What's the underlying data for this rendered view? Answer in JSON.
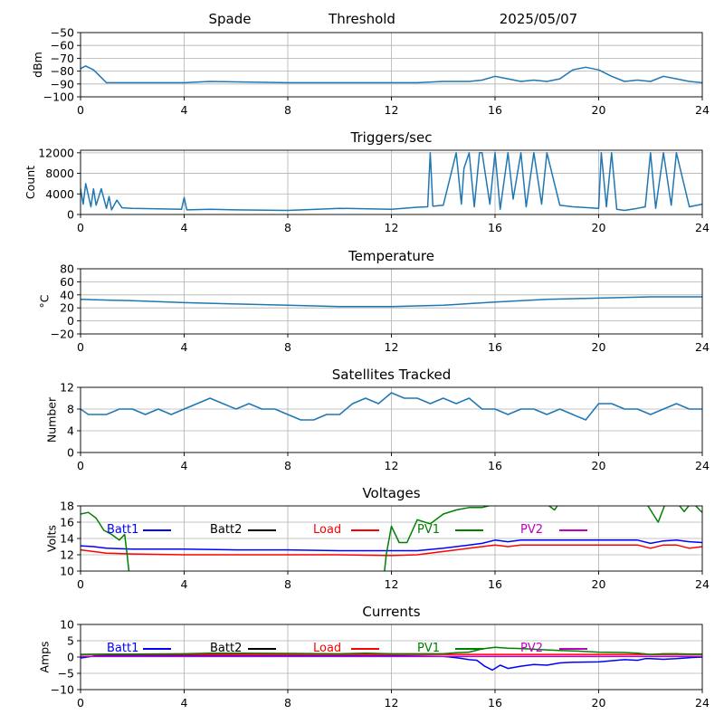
{
  "header": {
    "site": "Spade",
    "mode": "Threshold",
    "date": "2025/05/07"
  },
  "colors": {
    "default": "#1f77b4",
    "Batt1": "#0000ff",
    "Batt2": "#000000",
    "Load": "#ff0000",
    "PV1": "#008000",
    "PV2": "#bf00bf"
  },
  "chart_data": [
    {
      "id": "signal",
      "type": "line",
      "title": "",
      "ylabel": "dBm",
      "xlim": [
        0,
        24
      ],
      "ylim": [
        -100,
        -50
      ],
      "xticks": [
        0,
        4,
        8,
        12,
        16,
        20,
        24
      ],
      "yticks": [
        -100,
        -90,
        -80,
        -70,
        -60,
        -50
      ],
      "grid": true,
      "series": [
        {
          "x": [
            0,
            0.2,
            0.5,
            0.8,
            1.0,
            4,
            5,
            8,
            12,
            13,
            14,
            15,
            15.5,
            16,
            16.5,
            17,
            17.5,
            18,
            18.5,
            19,
            19.5,
            20,
            20.5,
            21,
            21.5,
            22,
            22.5,
            23,
            23.5,
            24
          ],
          "y": [
            -78,
            -76,
            -79,
            -85,
            -89,
            -89,
            -88,
            -89,
            -89,
            -89,
            -88,
            -88,
            -87,
            -84,
            -86,
            -88,
            -87,
            -88,
            -86,
            -79,
            -77,
            -79,
            -84,
            -88,
            -87,
            -88,
            -84,
            -86,
            -88,
            -89
          ]
        }
      ]
    },
    {
      "id": "triggers",
      "type": "line",
      "title": "Triggers/sec",
      "ylabel": "Count",
      "xlim": [
        0,
        24
      ],
      "ylim": [
        0,
        12500
      ],
      "xticks": [
        0,
        4,
        8,
        12,
        16,
        20,
        24
      ],
      "yticks": [
        0,
        4000,
        8000,
        12000
      ],
      "grid": true,
      "series": [
        {
          "x": [
            0,
            0.1,
            0.2,
            0.4,
            0.5,
            0.6,
            0.8,
            1.0,
            1.1,
            1.2,
            1.4,
            1.6,
            2,
            3,
            3.9,
            4.0,
            4.1,
            5,
            6,
            8,
            10,
            12,
            13,
            13.4,
            13.5,
            13.6,
            14,
            14.5,
            14.7,
            14.8,
            15,
            15.2,
            15.4,
            15.5,
            15.8,
            16,
            16.2,
            16.5,
            16.7,
            17,
            17.2,
            17.5,
            17.8,
            18,
            18.5,
            19,
            20,
            20.1,
            20.3,
            20.5,
            20.7,
            21,
            21.5,
            21.8,
            22,
            22.2,
            22.5,
            22.8,
            23,
            23.5,
            24
          ],
          "y": [
            5000,
            2000,
            6000,
            1500,
            5000,
            1800,
            5000,
            1200,
            3500,
            900,
            2800,
            1300,
            1200,
            1100,
            1000,
            3300,
            900,
            1000,
            900,
            800,
            1200,
            1000,
            1400,
            1500,
            12000,
            1600,
            1800,
            12000,
            2000,
            9000,
            12000,
            1500,
            12000,
            12000,
            2000,
            12000,
            1000,
            12000,
            3000,
            12000,
            1500,
            12000,
            2000,
            12000,
            1800,
            1500,
            1200,
            12000,
            1500,
            12000,
            1000,
            800,
            1200,
            1500,
            12000,
            1200,
            12000,
            1800,
            12000,
            1500,
            2000
          ]
        }
      ]
    },
    {
      "id": "temperature",
      "type": "line",
      "title": "Temperature",
      "ylabel": "°C",
      "xlim": [
        0,
        24
      ],
      "ylim": [
        -20,
        80
      ],
      "xticks": [
        0,
        4,
        8,
        12,
        16,
        20,
        24
      ],
      "yticks": [
        -20,
        0,
        20,
        40,
        60,
        80
      ],
      "grid": true,
      "series": [
        {
          "x": [
            0,
            2,
            4,
            6,
            8,
            10,
            12,
            14,
            16,
            18,
            20,
            22,
            24
          ],
          "y": [
            33,
            31,
            28,
            26,
            24,
            22,
            22,
            24,
            29,
            33,
            35,
            37,
            37
          ]
        }
      ]
    },
    {
      "id": "satellites",
      "type": "line",
      "title": "Satellites Tracked",
      "ylabel": "Number",
      "xlim": [
        0,
        24
      ],
      "ylim": [
        0,
        12
      ],
      "xticks": [
        0,
        4,
        8,
        12,
        16,
        20,
        24
      ],
      "yticks": [
        0,
        4,
        8,
        12
      ],
      "grid": true,
      "series": [
        {
          "x": [
            0,
            0.3,
            0.5,
            1,
            1.5,
            2,
            2.5,
            3,
            3.5,
            4,
            4.5,
            5,
            5.5,
            6,
            6.5,
            7,
            7.5,
            8,
            8.5,
            9,
            9.5,
            10,
            10.5,
            11,
            11.5,
            12,
            12.5,
            13,
            13.5,
            14,
            14.5,
            15,
            15.5,
            16,
            16.5,
            17,
            17.5,
            18,
            18.5,
            19,
            19.5,
            20,
            20.5,
            21,
            21.5,
            22,
            22.5,
            23,
            23.5,
            24
          ],
          "y": [
            8,
            7,
            7,
            7,
            8,
            8,
            7,
            8,
            7,
            8,
            9,
            10,
            9,
            8,
            9,
            8,
            8,
            7,
            6,
            6,
            7,
            7,
            9,
            10,
            9,
            11,
            10,
            10,
            9,
            10,
            9,
            10,
            8,
            8,
            7,
            8,
            8,
            7,
            8,
            7,
            6,
            9,
            9,
            8,
            8,
            7,
            8,
            9,
            8,
            8
          ]
        }
      ]
    },
    {
      "id": "voltages",
      "type": "line",
      "title": "Voltages",
      "ylabel": "Volts",
      "xlim": [
        0,
        24
      ],
      "ylim": [
        10,
        18
      ],
      "xticks": [
        0,
        4,
        8,
        12,
        16,
        20,
        24
      ],
      "yticks": [
        10,
        12,
        14,
        16,
        18
      ],
      "grid": true,
      "legend": {
        "placement": "inside-top",
        "entries": [
          "Batt1",
          "Batt2",
          "Load",
          "PV1",
          "PV2"
        ]
      },
      "series": [
        {
          "name": "Batt1",
          "x": [
            0,
            0.5,
            1,
            2,
            4,
            6,
            8,
            10,
            12,
            13,
            14,
            15,
            15.5,
            16,
            16.5,
            17,
            18,
            19,
            20,
            21,
            21.5,
            22,
            22.5,
            23,
            23.5,
            24
          ],
          "y": [
            13.1,
            13.0,
            12.8,
            12.7,
            12.7,
            12.6,
            12.6,
            12.5,
            12.5,
            12.5,
            12.8,
            13.2,
            13.4,
            13.8,
            13.6,
            13.8,
            13.8,
            13.8,
            13.8,
            13.8,
            13.8,
            13.4,
            13.7,
            13.8,
            13.6,
            13.5
          ]
        },
        {
          "name": "Batt2",
          "x": [],
          "y": []
        },
        {
          "name": "Load",
          "x": [
            0,
            0.5,
            1,
            2,
            4,
            6,
            8,
            10,
            12,
            13,
            14,
            15,
            15.5,
            16,
            16.5,
            17,
            18,
            19,
            20,
            21,
            21.5,
            22,
            22.5,
            23,
            23.5,
            24
          ],
          "y": [
            12.6,
            12.4,
            12.2,
            12.1,
            12.0,
            12.0,
            12.0,
            12.0,
            11.9,
            12.0,
            12.4,
            12.8,
            13.0,
            13.2,
            13.0,
            13.2,
            13.2,
            13.2,
            13.2,
            13.2,
            13.2,
            12.8,
            13.2,
            13.2,
            12.8,
            13.0
          ]
        },
        {
          "name": "PV1",
          "x": [
            0,
            0.3,
            0.6,
            0.9,
            1.2,
            1.5,
            1.7,
            1.8,
            1.9,
            11.7,
            11.8,
            12.0,
            12.3,
            12.6,
            13,
            13.5,
            14,
            14.5,
            15,
            15.5,
            16,
            16.5,
            17,
            17.5,
            18,
            18.3,
            18.5,
            19,
            20,
            21,
            21.5,
            21.8,
            22,
            22.3,
            22.6,
            23,
            23.3,
            23.6,
            23.9,
            24
          ],
          "y": [
            17,
            17.2,
            16.5,
            15,
            14.5,
            13.8,
            14.5,
            12,
            9,
            9,
            12,
            15.5,
            13.5,
            13.5,
            16.3,
            15.8,
            17,
            17.5,
            17.8,
            17.8,
            18.2,
            18.5,
            18.5,
            18.5,
            18.2,
            17.5,
            18.5,
            18.5,
            18.5,
            18.5,
            18.5,
            18.5,
            17.5,
            16,
            18.5,
            18.5,
            17.3,
            18.5,
            17.5,
            17.2
          ]
        },
        {
          "name": "PV2",
          "x": [],
          "y": []
        }
      ]
    },
    {
      "id": "currents",
      "type": "line",
      "title": "Currents",
      "ylabel": "Amps",
      "xlim": [
        0,
        24
      ],
      "ylim": [
        -10,
        10
      ],
      "xticks": [
        0,
        4,
        8,
        12,
        16,
        20,
        24
      ],
      "yticks": [
        -10,
        -5,
        0,
        5,
        10
      ],
      "grid": true,
      "legend": {
        "placement": "inside-top",
        "entries": [
          "Batt1",
          "Batt2",
          "Load",
          "PV1",
          "PV2"
        ]
      },
      "series": [
        {
          "name": "Batt1",
          "x": [
            0,
            0.5,
            1,
            2,
            4,
            6,
            8,
            10,
            12,
            13,
            14,
            14.5,
            15,
            15.3,
            15.6,
            15.9,
            16.2,
            16.5,
            17,
            17.5,
            18,
            18.5,
            19,
            20,
            21,
            21.5,
            21.8,
            22,
            22.5,
            23,
            23.5,
            24
          ],
          "y": [
            -0.3,
            0.3,
            0.5,
            0.5,
            0.5,
            0.4,
            0.4,
            0.4,
            0.4,
            0.3,
            0.2,
            -0.2,
            -0.8,
            -1.0,
            -2.8,
            -4,
            -2.5,
            -3.5,
            -2.8,
            -2.3,
            -2.5,
            -1.8,
            -1.6,
            -1.5,
            -0.8,
            -1.0,
            -0.5,
            -0.5,
            -0.7,
            -0.5,
            -0.2,
            0
          ]
        },
        {
          "name": "Batt2",
          "x": [],
          "y": []
        },
        {
          "name": "Load",
          "x": [
            0,
            4,
            8,
            12,
            16,
            20,
            24
          ],
          "y": [
            0.8,
            0.8,
            0.8,
            0.8,
            0.8,
            0.8,
            0.8
          ]
        },
        {
          "name": "PV1",
          "x": [
            0,
            1,
            2,
            4,
            5,
            6,
            8,
            10,
            11,
            12,
            13,
            14,
            14.5,
            15,
            15.5,
            16,
            16.5,
            17,
            17.5,
            18,
            18.5,
            19,
            20,
            21,
            21.5,
            22,
            22.5,
            23,
            23.5,
            24
          ],
          "y": [
            0.8,
            0.9,
            0.9,
            1.0,
            1.2,
            1.2,
            1.1,
            1.0,
            1.2,
            1.0,
            1.0,
            1.0,
            1.3,
            1.5,
            2.5,
            3.0,
            2.7,
            2.6,
            2.4,
            2.2,
            2.0,
            1.9,
            1.5,
            1.4,
            1.2,
            0.8,
            1.0,
            1.0,
            0.9,
            0.9
          ]
        },
        {
          "name": "PV2",
          "x": [
            0,
            4,
            8,
            12,
            16,
            20,
            24
          ],
          "y": [
            0.2,
            0.2,
            0.2,
            0.2,
            0.2,
            0.2,
            0.2
          ]
        }
      ]
    }
  ]
}
